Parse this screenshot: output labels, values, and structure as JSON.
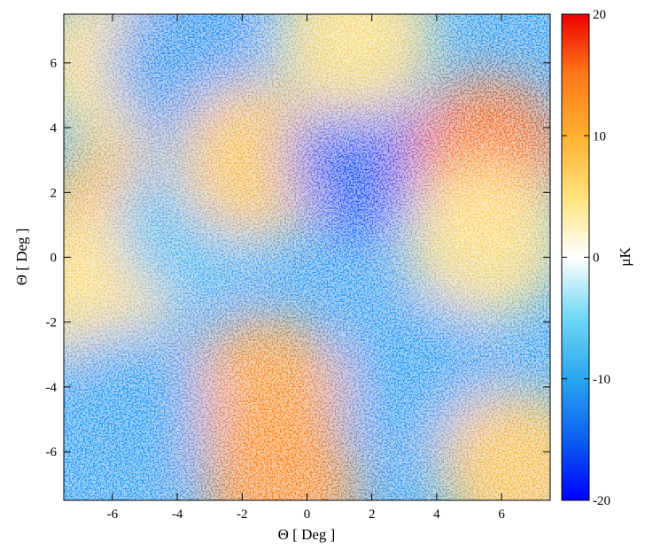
{
  "chart_data": {
    "type": "heatmap",
    "title": "",
    "xlabel": "Θ [ Deg ]",
    "ylabel": "Θ [ Deg ]",
    "xlim": [
      -7.5,
      7.5
    ],
    "ylim": [
      -7.5,
      7.5
    ],
    "x_ticks": [
      -6,
      -4,
      -2,
      0,
      2,
      4,
      6
    ],
    "y_ticks": [
      -6,
      -4,
      -2,
      0,
      2,
      4,
      6
    ],
    "x_tick_labels": [
      "-6",
      "-4",
      "-2",
      "0",
      "2",
      "4",
      "6"
    ],
    "y_tick_labels": [
      "-6",
      "-4",
      "-2",
      "0",
      "2",
      "4",
      "6"
    ],
    "colorbar": {
      "label": "μK",
      "range": [
        -20,
        20
      ],
      "ticks": [
        -20,
        -10,
        0,
        10,
        20
      ],
      "tick_labels": [
        "-20",
        "-10",
        "0",
        "10",
        "20"
      ],
      "colors": [
        "#0000ff",
        "#0a5ff0",
        "#2aa6f0",
        "#6fd8f4",
        "#ffffff",
        "#ffe27a",
        "#ffb030",
        "#ff7a18",
        "#ee0000"
      ]
    },
    "regions": [
      {
        "x": -6.0,
        "y": 6.0,
        "value": 6
      },
      {
        "x": -5.8,
        "y": 1.2,
        "value": 10
      },
      {
        "x": -6.5,
        "y": -1.0,
        "value": 6
      },
      {
        "x": -3.8,
        "y": 6.0,
        "value": -12
      },
      {
        "x": -3.5,
        "y": 1.0,
        "value": -9
      },
      {
        "x": -1.5,
        "y": 3.0,
        "value": 9
      },
      {
        "x": 1.8,
        "y": 3.0,
        "value": -16
      },
      {
        "x": 1.5,
        "y": 6.8,
        "value": 6
      },
      {
        "x": 5.6,
        "y": 3.2,
        "value": 16
      },
      {
        "x": 5.5,
        "y": 0.5,
        "value": 6
      },
      {
        "x": -1.3,
        "y": -4.2,
        "value": 13
      },
      {
        "x": -0.8,
        "y": -7.0,
        "value": 14
      },
      {
        "x": 3.5,
        "y": -3.5,
        "value": -11
      },
      {
        "x": -5.5,
        "y": -4.5,
        "value": -11
      },
      {
        "x": 6.5,
        "y": -6.5,
        "value": 9
      }
    ]
  }
}
